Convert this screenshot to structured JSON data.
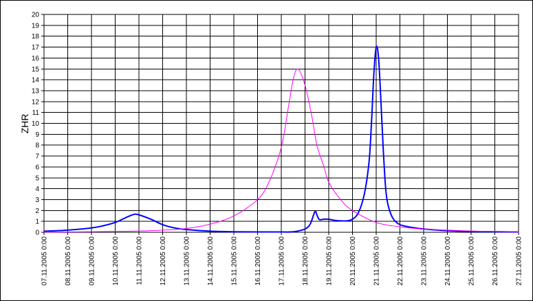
{
  "chart_data": {
    "type": "line",
    "title": "",
    "xlabel": "",
    "ylabel": "ZHR",
    "ylim": [
      0,
      20
    ],
    "xlim": [
      "2005-11-07 00:00",
      "2005-11-27 00:00"
    ],
    "grid": true,
    "legend": "none",
    "y_ticks": [
      "0",
      "1",
      "2",
      "3",
      "4",
      "5",
      "6",
      "7",
      "8",
      "9",
      "10",
      "11",
      "12",
      "13",
      "14",
      "15",
      "16",
      "17",
      "18",
      "19",
      "20"
    ],
    "x_ticks": [
      "07.11.2005 0:00",
      "08.11.2005 0:00",
      "09.11.2005 0:00",
      "10.11.2005 0:00",
      "11.11.2005 0:00",
      "12.11.2005 0:00",
      "13.11.2005 0:00",
      "14.11.2005 0:00",
      "15.11.2005 0:00",
      "16.11.2005 0:00",
      "17.11.2005 0:00",
      "18.11.2005 0:00",
      "19.11.2005 0:00",
      "20.11.2005 0:00",
      "21.11.2005 0:00",
      "22.11.2005 0:00",
      "23.11.2005 0:00",
      "24.11.2005 0:00",
      "25.11.2005 0:00",
      "26.11.2005 0:00",
      "27.11.2005 0:00"
    ],
    "series": [
      {
        "color": "#0000ff",
        "x": [
          "2005-11-07 00:00",
          "2005-11-08 00:00",
          "2005-11-09 00:00",
          "2005-11-09 12:00",
          "2005-11-10 00:00",
          "2005-11-10 12:00",
          "2005-11-10 19:12",
          "2005-11-11 00:00",
          "2005-11-11 12:00",
          "2005-11-12 00:00",
          "2005-11-12 12:00",
          "2005-11-13 00:00",
          "2005-11-14 00:00",
          "2005-11-15 00:00",
          "2005-11-16 00:00",
          "2005-11-17 00:00",
          "2005-11-17 12:00",
          "2005-11-18 00:00",
          "2005-11-18 05:30",
          "2005-11-18 10:00",
          "2005-11-18 12:00",
          "2005-11-18 14:00",
          "2005-11-18 16:00",
          "2005-11-18 19:00",
          "2005-11-19 00:00",
          "2005-11-19 06:00",
          "2005-11-19 12:00",
          "2005-11-19 18:00",
          "2005-11-20 00:00",
          "2005-11-20 06:00",
          "2005-11-20 12:00",
          "2005-11-20 16:48",
          "2005-11-20 19:12",
          "2005-11-20 21:36",
          "2005-11-21 00:00",
          "2005-11-21 02:24",
          "2005-11-21 04:48",
          "2005-11-21 07:12",
          "2005-11-21 09:36",
          "2005-11-21 12:00",
          "2005-11-21 16:48",
          "2005-11-22 00:00",
          "2005-11-22 12:00",
          "2005-11-23 00:00",
          "2005-11-24 00:00",
          "2005-11-25 00:00",
          "2005-11-26 00:00",
          "2005-11-27 00:00"
        ],
        "values": [
          0.1,
          0.2,
          0.4,
          0.6,
          0.9,
          1.4,
          1.65,
          1.6,
          1.2,
          0.7,
          0.4,
          0.25,
          0.1,
          0.05,
          0.03,
          0.03,
          0.05,
          0.3,
          0.8,
          1.9,
          1.6,
          1.2,
          1.15,
          1.2,
          1.2,
          1.1,
          1.05,
          1.05,
          1.2,
          1.8,
          3.5,
          6.5,
          10.0,
          14.5,
          17.0,
          16.0,
          12.0,
          7.5,
          4.0,
          2.5,
          1.3,
          0.7,
          0.45,
          0.3,
          0.15,
          0.08,
          0.05,
          0.03
        ]
      },
      {
        "color": "#ff00ff",
        "x": [
          "2005-11-07 00:00",
          "2005-11-08 00:00",
          "2005-11-09 00:00",
          "2005-11-10 00:00",
          "2005-11-11 00:00",
          "2005-11-12 00:00",
          "2005-11-13 00:00",
          "2005-11-14 00:00",
          "2005-11-15 00:00",
          "2005-11-16 00:00",
          "2005-11-16 12:00",
          "2005-11-17 00:00",
          "2005-11-17 07:12",
          "2005-11-17 12:00",
          "2005-11-17 16:48",
          "2005-11-18 00:00",
          "2005-11-18 07:12",
          "2005-11-18 12:00",
          "2005-11-18 19:12",
          "2005-11-19 00:00",
          "2005-11-19 12:00",
          "2005-11-20 00:00",
          "2005-11-21 00:00",
          "2005-11-22 00:00",
          "2005-11-23 00:00",
          "2005-11-24 00:00",
          "2005-11-25 00:00",
          "2005-11-26 00:00",
          "2005-11-27 00:00"
        ],
        "values": [
          0.02,
          0.03,
          0.05,
          0.08,
          0.12,
          0.2,
          0.35,
          0.75,
          1.5,
          3.0,
          4.7,
          7.8,
          11.5,
          14.0,
          15.0,
          13.5,
          10.5,
          8.0,
          6.0,
          4.6,
          3.0,
          2.0,
          0.9,
          0.5,
          0.3,
          0.2,
          0.12,
          0.08,
          0.05
        ]
      }
    ]
  }
}
